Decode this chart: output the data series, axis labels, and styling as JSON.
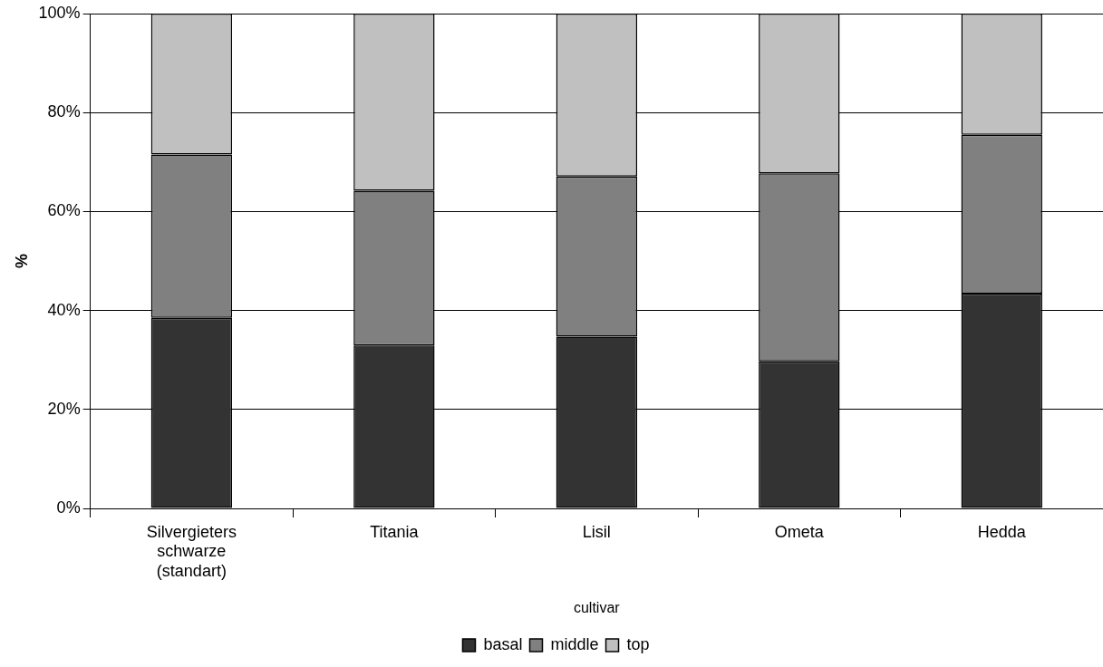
{
  "chart_data": {
    "type": "bar",
    "stacked": true,
    "xlabel": "cultivar",
    "ylabel": "%",
    "categories": [
      "Silvergieters schwarze (standart)",
      "Titania",
      "Lisil",
      "Ometa",
      "Hedda"
    ],
    "series": [
      {
        "name": "basal",
        "color": "#333333",
        "values": [
          38.5,
          32.9,
          34.7,
          29.7,
          43.4
        ]
      },
      {
        "name": "middle",
        "color": "#808080",
        "values": [
          33.0,
          31.3,
          32.4,
          38.0,
          32.1
        ]
      },
      {
        "name": "top",
        "color": "#c0c0c0",
        "values": [
          28.5,
          35.8,
          32.9,
          32.3,
          24.5
        ]
      }
    ],
    "ylim": [
      0,
      100
    ],
    "yticks": [
      {
        "value": 0,
        "label": "0%"
      },
      {
        "value": 20,
        "label": "20%"
      },
      {
        "value": 40,
        "label": "40%"
      },
      {
        "value": 60,
        "label": "60%"
      },
      {
        "value": 80,
        "label": "80%"
      },
      {
        "value": 100,
        "label": "100%"
      }
    ],
    "grid": "y",
    "legend": "bottom"
  }
}
